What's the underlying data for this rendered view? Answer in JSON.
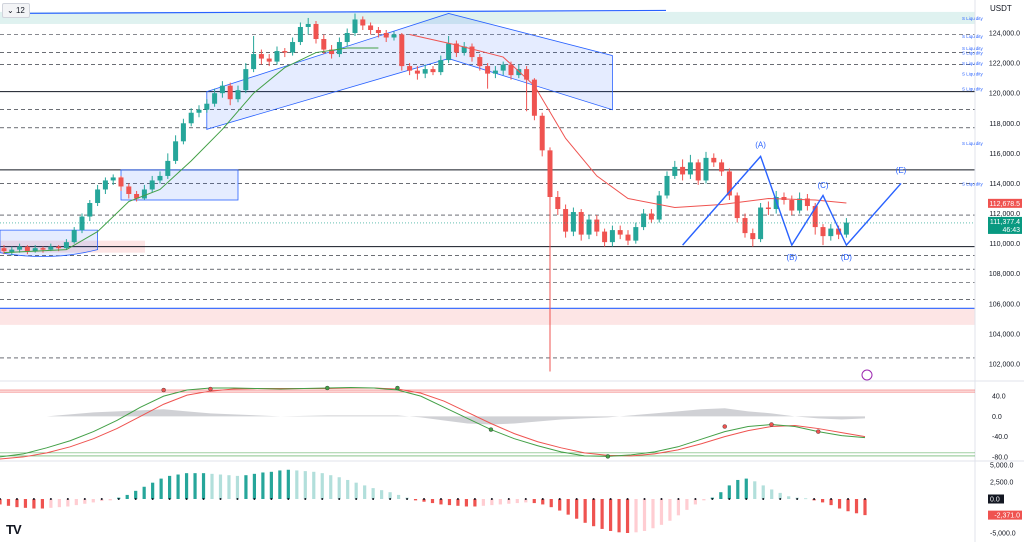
{
  "header": {
    "interval_label": "12",
    "currency": "USDT",
    "logo_text": "TV"
  },
  "colors": {
    "up": "#26a69a",
    "down": "#ef5350",
    "channel": "#2962ff",
    "channel_fill": "rgba(41,98,255,0.12)",
    "resistance_zone": "rgba(38,166,154,0.15)",
    "support_zone": "rgba(239,83,80,0.15)",
    "ma_fast": "#43a047",
    "ma_slow": "#ef5350",
    "stoch_k": "#43a047",
    "stoch_d": "#ef5350",
    "hist_up": "#4caf50",
    "hist_down": "#ef5350"
  },
  "chart_data": [
    {
      "type": "candlestick",
      "y_ticks": [
        "124,000.0",
        "122,000.0",
        "120,000.0",
        "118,000.0",
        "116,000.0",
        "114,000.0",
        "112,000.0",
        "110,000.0",
        "108,000.0",
        "106,000.0",
        "104,000.0",
        "102,000.0"
      ],
      "ylim": [
        101000,
        125500
      ],
      "liquidity_label": "S Liquidity",
      "liquidity_levels": [
        125000,
        123800,
        123000,
        122700,
        122000,
        121300,
        120300,
        116700,
        114000
      ],
      "support_lines": [
        114900,
        120100,
        109800
      ],
      "dashed_levels": [
        123900,
        122700,
        121900,
        118900,
        117700,
        114000,
        111900,
        109200,
        108300,
        107400,
        106300,
        102400
      ],
      "price_badges": {
        "last": "111,377.4",
        "countdown": "46:43",
        "ma_value": "112,678.5"
      },
      "wave_labels": [
        "(A)",
        "(B)",
        "(C)",
        "(D)",
        "(E)"
      ],
      "candles": [
        [
          109.7,
          109.5,
          109.9,
          109.3
        ],
        [
          109.4,
          109.6,
          109.8,
          109.2
        ],
        [
          109.6,
          109.8,
          110.0,
          109.4
        ],
        [
          109.8,
          109.5,
          109.9,
          109.3
        ],
        [
          109.5,
          109.7,
          109.9,
          109.4
        ],
        [
          109.7,
          109.6,
          109.8,
          109.4
        ],
        [
          109.6,
          109.8,
          110.0,
          109.5
        ],
        [
          109.8,
          109.7,
          109.9,
          109.5
        ],
        [
          109.7,
          110.1,
          110.3,
          109.6
        ],
        [
          110.1,
          110.9,
          111.1,
          110.0
        ],
        [
          110.9,
          111.8,
          112.0,
          110.7
        ],
        [
          111.8,
          112.7,
          112.9,
          111.5
        ],
        [
          112.7,
          113.6,
          113.9,
          112.5
        ],
        [
          113.6,
          114.2,
          114.4,
          113.3
        ],
        [
          114.2,
          114.4,
          114.6,
          113.9
        ],
        [
          114.4,
          113.8,
          114.5,
          113.5
        ],
        [
          113.8,
          113.3,
          114.0,
          113.0
        ],
        [
          113.3,
          113.0,
          113.5,
          112.8
        ],
        [
          113.0,
          113.6,
          113.9,
          112.9
        ],
        [
          113.6,
          114.2,
          114.5,
          113.4
        ],
        [
          114.2,
          114.5,
          114.8,
          114.0
        ],
        [
          114.5,
          115.5,
          116.0,
          114.3
        ],
        [
          115.5,
          116.8,
          117.2,
          115.3
        ],
        [
          116.8,
          118.0,
          118.3,
          116.6
        ],
        [
          118.0,
          118.7,
          119.0,
          117.8
        ],
        [
          118.7,
          118.9,
          119.2,
          118.4
        ],
        [
          118.9,
          119.3,
          119.6,
          118.7
        ],
        [
          119.3,
          120.0,
          120.3,
          119.1
        ],
        [
          120.0,
          120.5,
          120.8,
          119.7
        ],
        [
          120.5,
          119.6,
          120.7,
          119.2
        ],
        [
          119.6,
          120.2,
          120.5,
          119.4
        ],
        [
          120.2,
          121.6,
          122.0,
          120.0
        ],
        [
          121.6,
          122.6,
          123.8,
          121.4
        ],
        [
          122.6,
          122.3,
          122.9,
          121.9
        ],
        [
          122.3,
          122.1,
          122.6,
          121.8
        ],
        [
          122.1,
          122.8,
          123.1,
          121.9
        ],
        [
          122.8,
          122.7,
          123.0,
          122.4
        ],
        [
          122.7,
          123.4,
          123.7,
          122.5
        ],
        [
          123.4,
          124.4,
          124.7,
          123.2
        ],
        [
          124.4,
          124.6,
          125.0,
          123.9
        ],
        [
          124.6,
          123.6,
          124.8,
          123.3
        ],
        [
          123.6,
          122.9,
          123.9,
          122.6
        ],
        [
          122.9,
          122.6,
          123.2,
          122.3
        ],
        [
          122.6,
          123.4,
          123.7,
          122.4
        ],
        [
          123.4,
          124.0,
          124.3,
          123.1
        ],
        [
          124.0,
          124.9,
          125.3,
          123.8
        ],
        [
          124.9,
          124.5,
          125.1,
          124.2
        ],
        [
          124.5,
          124.2,
          124.7,
          123.9
        ],
        [
          124.2,
          124.0,
          124.4,
          123.7
        ],
        [
          124.0,
          123.7,
          124.2,
          123.4
        ],
        [
          123.7,
          123.9,
          124.1,
          123.5
        ],
        [
          123.9,
          121.8,
          124.0,
          121.5
        ],
        [
          121.8,
          121.5,
          122.0,
          121.2
        ],
        [
          121.5,
          121.3,
          121.8,
          120.9
        ],
        [
          121.3,
          121.6,
          121.9,
          121.0
        ],
        [
          121.6,
          121.4,
          121.8,
          121.2
        ],
        [
          121.4,
          122.2,
          122.5,
          121.2
        ],
        [
          122.2,
          123.3,
          123.8,
          122.0
        ],
        [
          123.3,
          122.7,
          123.5,
          122.4
        ],
        [
          122.7,
          123.1,
          123.4,
          122.5
        ],
        [
          123.1,
          122.4,
          123.3,
          122.1
        ],
        [
          122.4,
          121.8,
          122.6,
          121.5
        ],
        [
          121.8,
          121.3,
          122.0,
          120.3
        ],
        [
          121.3,
          121.5,
          121.8,
          121.0
        ],
        [
          121.5,
          121.9,
          122.1,
          121.2
        ],
        [
          121.9,
          121.2,
          122.1,
          120.9
        ],
        [
          121.2,
          121.6,
          121.9,
          121.0
        ],
        [
          121.6,
          120.9,
          121.8,
          118.8
        ],
        [
          120.9,
          118.5,
          121.0,
          118.2
        ],
        [
          118.5,
          116.2,
          118.7,
          115.8
        ],
        [
          116.2,
          113.1,
          116.4,
          101.5
        ],
        [
          113.1,
          112.3,
          113.5,
          111.9
        ],
        [
          112.3,
          110.8,
          112.6,
          110.4
        ],
        [
          110.8,
          112.1,
          112.4,
          110.5
        ],
        [
          112.1,
          110.6,
          112.3,
          110.2
        ],
        [
          110.6,
          111.6,
          111.9,
          110.3
        ],
        [
          111.6,
          110.8,
          111.9,
          110.5
        ],
        [
          110.8,
          110.1,
          111.0,
          109.8
        ],
        [
          110.1,
          110.9,
          111.2,
          109.8
        ],
        [
          110.9,
          110.6,
          111.2,
          110.3
        ],
        [
          110.6,
          110.2,
          110.9,
          109.9
        ],
        [
          110.2,
          111.1,
          111.4,
          110.0
        ],
        [
          111.1,
          112.0,
          112.3,
          110.9
        ],
        [
          112.0,
          111.6,
          112.3,
          111.4
        ],
        [
          111.6,
          113.2,
          113.5,
          111.4
        ],
        [
          113.2,
          114.5,
          114.8,
          113.0
        ],
        [
          114.5,
          115.1,
          115.5,
          114.3
        ],
        [
          115.1,
          114.6,
          115.6,
          114.2
        ],
        [
          114.6,
          115.4,
          115.9,
          114.3
        ],
        [
          115.4,
          114.2,
          115.6,
          113.9
        ],
        [
          114.2,
          115.7,
          116.1,
          114.0
        ],
        [
          115.7,
          115.4,
          116.0,
          115.1
        ],
        [
          115.4,
          114.8,
          115.6,
          114.5
        ],
        [
          114.8,
          113.2,
          115.0,
          112.9
        ],
        [
          113.2,
          111.7,
          113.4,
          111.4
        ],
        [
          111.7,
          110.7,
          112.0,
          110.4
        ],
        [
          110.7,
          110.3,
          111.0,
          109.8
        ],
        [
          110.3,
          112.4,
          112.7,
          110.1
        ],
        [
          112.4,
          112.3,
          112.8,
          111.9
        ],
        [
          112.3,
          113.1,
          113.5,
          112.0
        ],
        [
          113.1,
          112.9,
          113.4,
          112.6
        ],
        [
          112.9,
          112.2,
          113.2,
          111.9
        ],
        [
          112.2,
          113.0,
          113.4,
          112.0
        ],
        [
          113.0,
          112.5,
          113.3,
          112.2
        ],
        [
          112.5,
          111.1,
          112.7,
          110.6
        ],
        [
          111.1,
          110.5,
          111.3,
          109.9
        ],
        [
          110.5,
          111.0,
          111.3,
          110.2
        ],
        [
          111.0,
          110.6,
          111.2,
          110.3
        ],
        [
          110.6,
          111.4,
          111.7,
          110.4
        ]
      ],
      "ma_slow_points": [
        [
          52,
          123.9
        ],
        [
          58,
          123.2
        ],
        [
          64,
          122.4
        ],
        [
          68,
          120.5
        ],
        [
          72,
          117.0
        ],
        [
          76,
          114.5
        ],
        [
          80,
          113.0
        ],
        [
          86,
          112.4
        ],
        [
          92,
          112.6
        ],
        [
          98,
          113.0
        ],
        [
          104,
          112.9
        ],
        [
          108,
          112.7
        ]
      ],
      "ma_fast_points": [
        [
          0,
          109.4
        ],
        [
          8,
          109.6
        ],
        [
          12,
          110.8
        ],
        [
          16,
          112.8
        ],
        [
          20,
          113.6
        ],
        [
          24,
          115.5
        ],
        [
          28,
          117.6
        ],
        [
          32,
          120.0
        ],
        [
          36,
          121.7
        ],
        [
          40,
          122.7
        ],
        [
          44,
          123.0
        ],
        [
          48,
          123.0
        ]
      ]
    },
    {
      "type": "line",
      "name": "stochastic-rsi",
      "y_ticks": [
        "40.0",
        "0.0",
        "-40.0",
        "-80.0"
      ],
      "ylim": [
        -90,
        60
      ],
      "k_values": [
        -80,
        -74,
        -62,
        -48,
        -30,
        -8,
        18,
        40,
        52,
        56,
        56,
        55,
        54,
        55,
        56,
        57,
        56,
        52,
        40,
        18,
        -4,
        -26,
        -44,
        -58,
        -70,
        -78,
        -79,
        -76,
        -70,
        -60,
        -45,
        -30,
        -20,
        -16,
        -20,
        -30,
        -38,
        -42
      ],
      "d_values": [
        -84,
        -80,
        -72,
        -60,
        -44,
        -24,
        0,
        24,
        42,
        50,
        54,
        55,
        55,
        55,
        55,
        56,
        56,
        54,
        46,
        30,
        8,
        -14,
        -34,
        -50,
        -62,
        -72,
        -77,
        -78,
        -74,
        -66,
        -54,
        -40,
        -28,
        -20,
        -18,
        -24,
        -32,
        -40
      ],
      "hist_values": [
        0,
        0,
        0,
        4,
        8,
        10,
        12,
        14,
        10,
        6,
        4,
        2,
        0,
        1,
        2,
        2,
        2,
        2,
        -2,
        -8,
        -14,
        -16,
        -14,
        -10,
        -6,
        -4,
        -2,
        2,
        6,
        10,
        14,
        16,
        10,
        6,
        0,
        -4,
        -6,
        -4
      ]
    },
    {
      "type": "bar",
      "name": "momentum-histogram",
      "y_ticks": [
        "5,000.0",
        "2,500.0",
        "0.0",
        "-2,500.0",
        "-5,000.0"
      ],
      "ylim": [
        -6000,
        6000
      ],
      "value_badges": {
        "zero": "0.0",
        "last": "-2,371.0"
      },
      "values": [
        -800,
        -1000,
        -1200,
        -1300,
        -1400,
        -1400,
        -1300,
        -1200,
        -1100,
        -900,
        -700,
        -500,
        -300,
        -200,
        200,
        600,
        1200,
        1800,
        2400,
        3000,
        3400,
        3600,
        3800,
        3800,
        3800,
        3700,
        3600,
        3500,
        3400,
        3500,
        3700,
        3900,
        4000,
        4200,
        4300,
        4200,
        4100,
        4000,
        3800,
        3500,
        3200,
        2800,
        2400,
        2000,
        1600,
        1300,
        1000,
        600,
        200,
        -200,
        -400,
        -600,
        -800,
        -900,
        -1000,
        -1100,
        -1100,
        -1000,
        -900,
        -800,
        -700,
        -600,
        -500,
        -600,
        -800,
        -1200,
        -1700,
        -2300,
        -2900,
        -3500,
        -4000,
        -4400,
        -4700,
        -4900,
        -5000,
        -4900,
        -4700,
        -4300,
        -3800,
        -3200,
        -2400,
        -1600,
        -800,
        -200,
        200,
        1000,
        2000,
        2800,
        3000,
        2600,
        2000,
        1400,
        900,
        400,
        200,
        100,
        -200,
        -500,
        -900,
        -1400,
        -1800,
        -2100,
        -2371
      ]
    }
  ]
}
